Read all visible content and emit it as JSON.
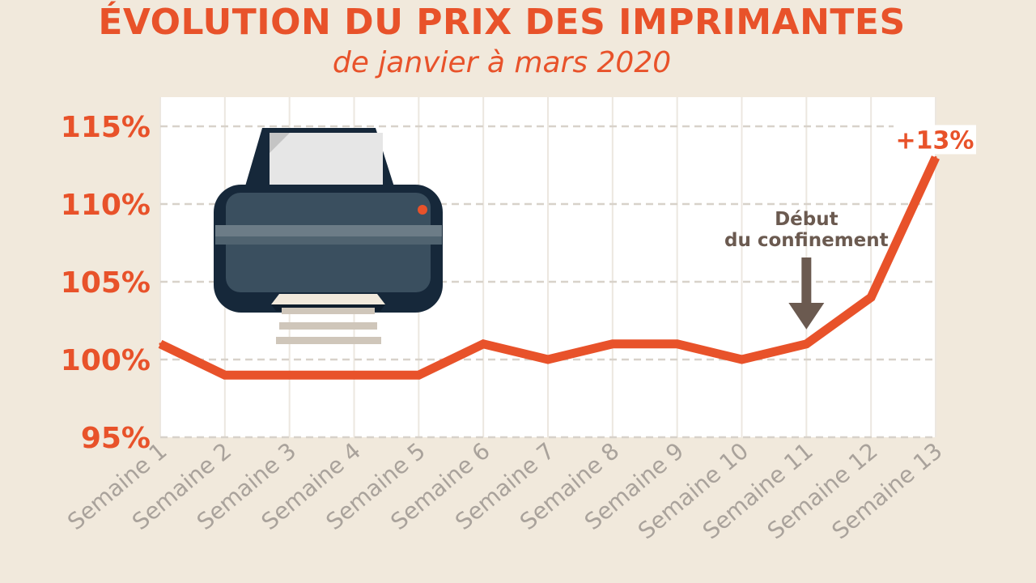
{
  "header": {
    "title": "ÉVOLUTION DU PRIX DES IMPRIMANTES",
    "subtitle": "de janvier à mars 2020"
  },
  "colors": {
    "background": "#f1e9dc",
    "accent": "#e8522a",
    "annotation": "#6b5a50",
    "plot_background": "#ffffff",
    "grid": "#d8d2ca",
    "tick_text": "#a9a29b"
  },
  "icon": "printer-icon",
  "chart_data": {
    "type": "line",
    "title": "ÉVOLUTION DU PRIX DES IMPRIMANTES",
    "subtitle": "de janvier à mars 2020",
    "categories": [
      "Semaine 1",
      "Semaine 2",
      "Semaine 3",
      "Semaine 4",
      "Semaine 5",
      "Semaine 6",
      "Semaine 7",
      "Semaine 8",
      "Semaine 9",
      "Semaine 10",
      "Semaine 11",
      "Semaine 12",
      "Semaine 13"
    ],
    "series": [
      {
        "values": [
          101,
          99,
          99,
          99,
          99,
          101,
          100,
          101,
          101,
          100,
          101,
          104,
          113
        ]
      }
    ],
    "y_ticks": [
      95,
      100,
      105,
      110,
      115
    ],
    "y_tick_labels": [
      "95%",
      "100%",
      "105%",
      "110%",
      "115%"
    ],
    "ylim": [
      95,
      117
    ],
    "grid": "horizontal-dashed",
    "annotations": [
      {
        "text_line1": "Début",
        "text_line2": "du confinement",
        "category": "Semaine 11",
        "marker": "down-arrow"
      },
      {
        "text": "+13%",
        "category": "Semaine 13"
      }
    ]
  }
}
